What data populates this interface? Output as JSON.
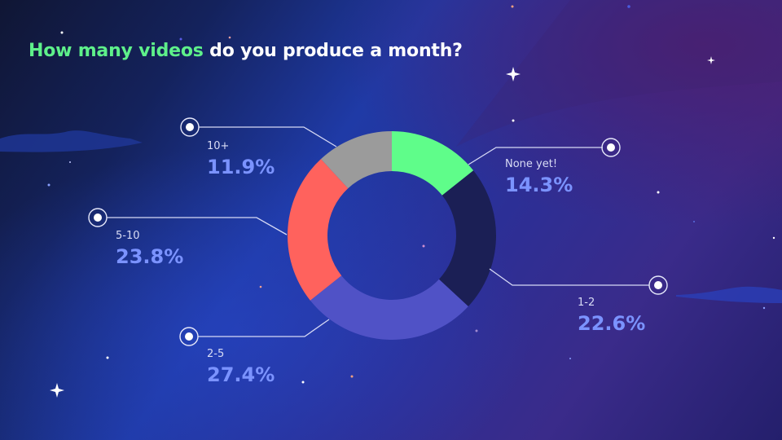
{
  "title": {
    "highlight": "How many videos",
    "rest": " do you produce a month?"
  },
  "colors": {
    "highlight": "#5ef08a",
    "percent_text": "#7b93ff",
    "connector": "#d6d9f5"
  },
  "chart_data": {
    "type": "pie",
    "variant": "donut",
    "title": "How many videos do you produce a month?",
    "categories": [
      "None yet!",
      "1-2",
      "2-5",
      "5-10",
      "10+"
    ],
    "values": [
      14.3,
      22.6,
      27.4,
      23.8,
      11.9
    ],
    "unit": "%",
    "colors": [
      "#5ffd8a",
      "#1b1f55",
      "#5052c6",
      "#ff625d",
      "#9b9b9b"
    ],
    "start_angle": "12 o'clock, clockwise",
    "legend": "callout labels with connector lines"
  },
  "labels": [
    {
      "category": "None yet!",
      "percent": "14.3%"
    },
    {
      "category": "1-2",
      "percent": "22.6%"
    },
    {
      "category": "2-5",
      "percent": "27.4%"
    },
    {
      "category": "5-10",
      "percent": "23.8%"
    },
    {
      "category": "10+",
      "percent": "11.9%"
    }
  ]
}
